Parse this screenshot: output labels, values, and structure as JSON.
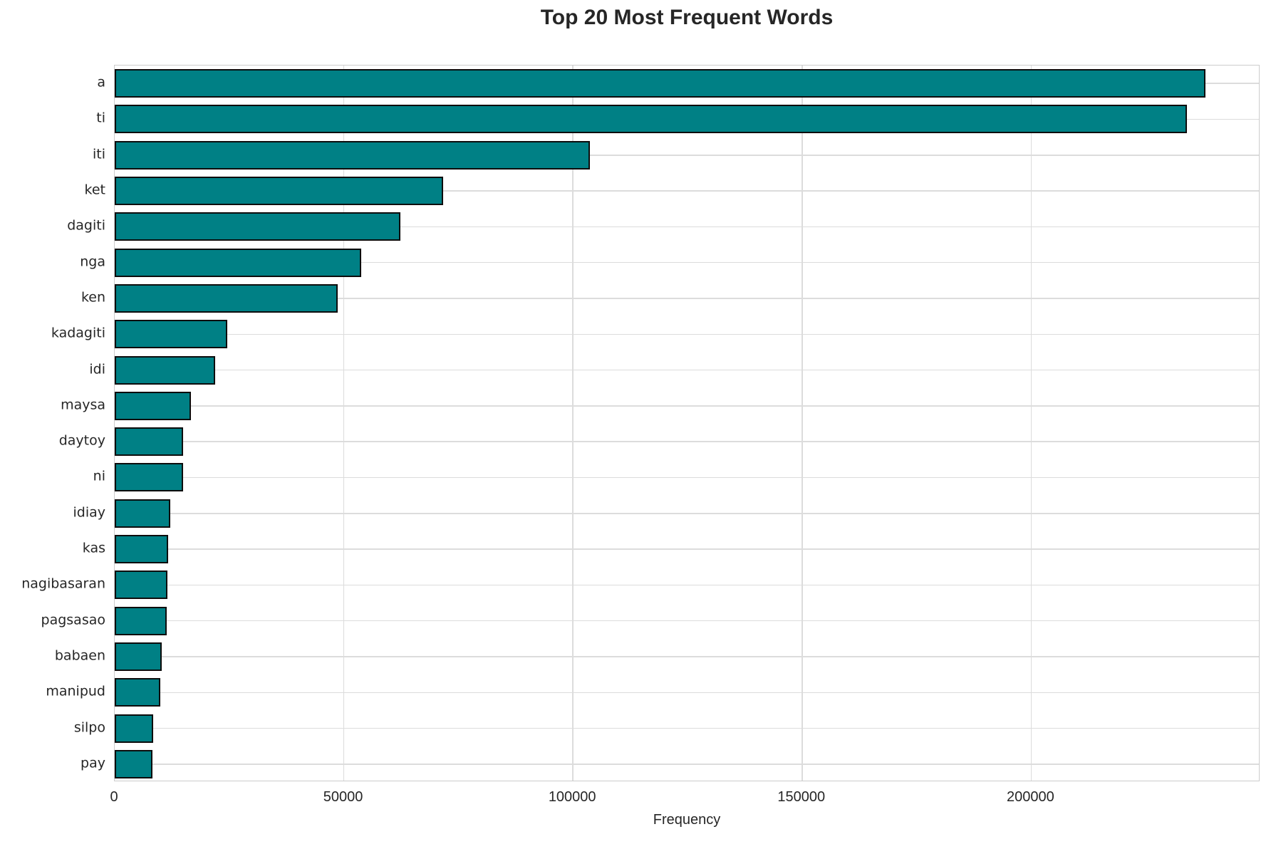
{
  "chart_data": {
    "type": "bar",
    "orientation": "horizontal",
    "title": "Top 20 Most Frequent Words",
    "xlabel": "Frequency",
    "ylabel": "",
    "categories": [
      "a",
      "ti",
      "iti",
      "ket",
      "dagiti",
      "nga",
      "ken",
      "kadagiti",
      "idi",
      "maysa",
      "daytoy",
      "ni",
      "idiay",
      "kas",
      "nagibasaran",
      "pagsasao",
      "babaen",
      "manipud",
      "silpo",
      "pay"
    ],
    "values": [
      238000,
      234000,
      103700,
      71700,
      62400,
      53800,
      48600,
      24500,
      21900,
      16600,
      15000,
      14900,
      12100,
      11600,
      11500,
      11400,
      10200,
      10000,
      8400,
      8300
    ],
    "xlim": [
      0,
      250000
    ],
    "xticks": [
      0,
      50000,
      100000,
      150000,
      200000
    ],
    "xtick_labels": [
      "0",
      "50000",
      "100000",
      "150000",
      "200000"
    ],
    "grid": "both",
    "legend": false,
    "bar_color": "#008085",
    "bar_edge_color": "#0d0d0d",
    "gridline_color": "#dcdcdc",
    "spine_color": "#cccccc",
    "text_color": "#262626",
    "background": "#ffffff"
  }
}
